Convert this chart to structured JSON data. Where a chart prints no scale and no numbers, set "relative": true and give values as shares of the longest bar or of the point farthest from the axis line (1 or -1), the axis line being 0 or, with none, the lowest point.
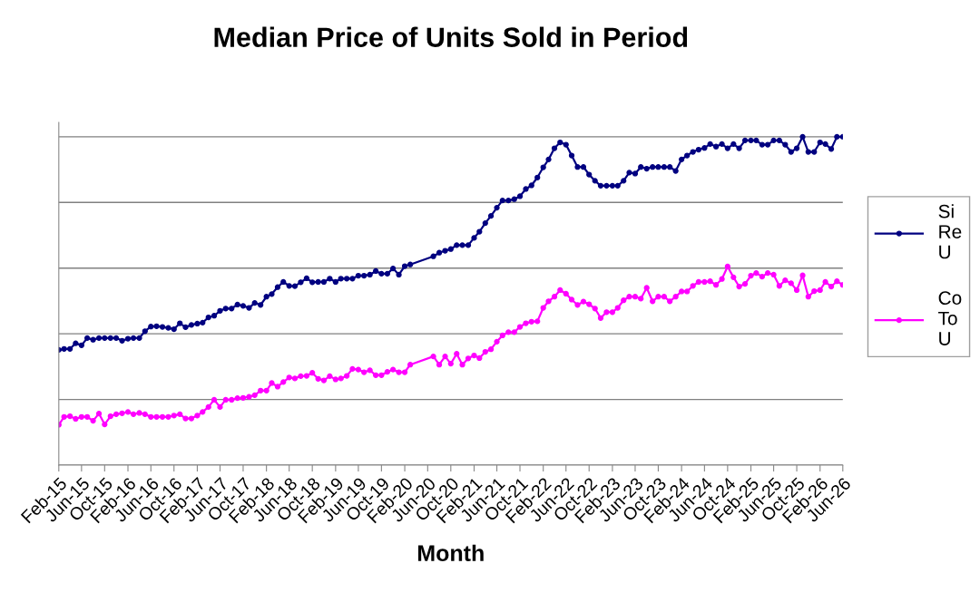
{
  "chart_data": {
    "type": "line",
    "title": "Median Price of Units Sold in Period",
    "xlabel": "Month",
    "relative": true,
    "grid": "y",
    "legend": "right",
    "marker": "circle",
    "line_style": "solid",
    "x": [
      "2015-02",
      "2015-03",
      "2015-04",
      "2015-05",
      "2015-06",
      "2015-07",
      "2015-08",
      "2015-09",
      "2015-10",
      "2015-11",
      "2015-12",
      "2016-01",
      "2016-02",
      "2016-03",
      "2016-04",
      "2016-05",
      "2016-06",
      "2016-07",
      "2016-08",
      "2016-09",
      "2016-10",
      "2016-11",
      "2016-12",
      "2017-01",
      "2017-02",
      "2017-03",
      "2017-04",
      "2017-05",
      "2017-06",
      "2017-07",
      "2017-08",
      "2017-09",
      "2017-10",
      "2017-11",
      "2017-12",
      "2018-01",
      "2018-02",
      "2018-03",
      "2018-04",
      "2018-05",
      "2018-06",
      "2018-07",
      "2018-08",
      "2018-09",
      "2018-10",
      "2018-11",
      "2018-12",
      "2019-01",
      "2019-02",
      "2019-03",
      "2019-04",
      "2019-05",
      "2019-06",
      "2019-07",
      "2019-08",
      "2019-09",
      "2019-10",
      "2019-11",
      "2019-12",
      "2020-01",
      "2020-02",
      "2020-03",
      "2020-07",
      "2020-08",
      "2020-09",
      "2020-10",
      "2020-11",
      "2020-12",
      "2021-01",
      "2021-02",
      "2021-03",
      "2021-04",
      "2021-05",
      "2021-06",
      "2021-07",
      "2021-08",
      "2021-09",
      "2021-10",
      "2021-11",
      "2021-12",
      "2022-01",
      "2022-02",
      "2022-03",
      "2022-04",
      "2022-05",
      "2022-06",
      "2022-07",
      "2022-08",
      "2022-09",
      "2022-10",
      "2022-11",
      "2022-12",
      "2023-01",
      "2023-02",
      "2023-03",
      "2023-04",
      "2023-05",
      "2023-06",
      "2023-07",
      "2023-08",
      "2023-09",
      "2023-10",
      "2023-11",
      "2023-12",
      "2024-01",
      "2024-02",
      "2024-03",
      "2024-04",
      "2024-05",
      "2024-06",
      "2024-07",
      "2024-08",
      "2024-09",
      "2024-10",
      "2024-11",
      "2024-12",
      "2025-01",
      "2025-02",
      "2025-03",
      "2025-04",
      "2025-05",
      "2025-06",
      "2025-07",
      "2025-08",
      "2025-09",
      "2025-10",
      "2025-11",
      "2025-12",
      "2026-01",
      "2026-02",
      "2026-03",
      "2026-04",
      "2026-05",
      "2026-06"
    ],
    "xlim": [
      "2015-02",
      "2026-06"
    ],
    "xticks": [
      {
        "value": "2015-02",
        "label": "Feb-15"
      },
      {
        "value": "2015-06",
        "label": "Jun-15"
      },
      {
        "value": "2015-10",
        "label": "Oct-15"
      },
      {
        "value": "2016-02",
        "label": "Feb-16"
      },
      {
        "value": "2016-06",
        "label": "Jun-16"
      },
      {
        "value": "2016-10",
        "label": "Oct-16"
      },
      {
        "value": "2017-02",
        "label": "Feb-17"
      },
      {
        "value": "2017-06",
        "label": "Jun-17"
      },
      {
        "value": "2017-10",
        "label": "Oct-17"
      },
      {
        "value": "2018-02",
        "label": "Feb-18"
      },
      {
        "value": "2018-06",
        "label": "Jun-18"
      },
      {
        "value": "2018-10",
        "label": "Oct-18"
      },
      {
        "value": "2019-02",
        "label": "Feb-19"
      },
      {
        "value": "2019-06",
        "label": "Jun-19"
      },
      {
        "value": "2019-10",
        "label": "Oct-19"
      },
      {
        "value": "2020-02",
        "label": "Feb-20"
      },
      {
        "value": "2020-06",
        "label": "Jun-20"
      },
      {
        "value": "2020-10",
        "label": "Oct-20"
      },
      {
        "value": "2021-02",
        "label": "Feb-21"
      },
      {
        "value": "2021-06",
        "label": "Jun-21"
      },
      {
        "value": "2021-10",
        "label": "Oct-21"
      },
      {
        "value": "2022-02",
        "label": "Feb-22"
      },
      {
        "value": "2022-06",
        "label": "Jun-22"
      },
      {
        "value": "2022-10",
        "label": "Oct-22"
      },
      {
        "value": "2023-02",
        "label": "Feb-23"
      },
      {
        "value": "2023-06",
        "label": "Jun-23"
      },
      {
        "value": "2023-10",
        "label": "Oct-23"
      },
      {
        "value": "2024-02",
        "label": "Feb-24"
      },
      {
        "value": "2024-06",
        "label": "Jun-24"
      },
      {
        "value": "2024-10",
        "label": "Oct-24"
      },
      {
        "value": "2025-02",
        "label": "Feb-25"
      },
      {
        "value": "2025-06",
        "label": "Jun-25"
      },
      {
        "value": "2025-10",
        "label": "Oct-25"
      },
      {
        "value": "2026-02",
        "label": "Feb-26"
      },
      {
        "value": "2026-06",
        "label": "Jun-26"
      }
    ],
    "series": [
      {
        "name": "Si\nRe\nU",
        "color": "#000080",
        "values": [
          0.351,
          0.354,
          0.354,
          0.371,
          0.365,
          0.387,
          0.382,
          0.387,
          0.387,
          0.387,
          0.387,
          0.379,
          0.385,
          0.387,
          0.387,
          0.408,
          0.422,
          0.423,
          0.421,
          0.418,
          0.414,
          0.432,
          0.42,
          0.427,
          0.431,
          0.434,
          0.45,
          0.455,
          0.47,
          0.477,
          0.477,
          0.489,
          0.485,
          0.479,
          0.494,
          0.488,
          0.513,
          0.521,
          0.542,
          0.558,
          0.546,
          0.545,
          0.557,
          0.569,
          0.557,
          0.558,
          0.558,
          0.568,
          0.558,
          0.568,
          0.568,
          0.568,
          0.577,
          0.577,
          0.58,
          0.591,
          0.583,
          0.583,
          0.599,
          0.58,
          0.606,
          0.611,
          0.636,
          0.647,
          0.653,
          0.658,
          0.67,
          0.67,
          0.67,
          0.692,
          0.711,
          0.737,
          0.759,
          0.784,
          0.806,
          0.806,
          0.81,
          0.819,
          0.841,
          0.852,
          0.876,
          0.907,
          0.931,
          0.965,
          0.983,
          0.976,
          0.943,
          0.908,
          0.908,
          0.885,
          0.866,
          0.851,
          0.851,
          0.851,
          0.851,
          0.866,
          0.891,
          0.888,
          0.908,
          0.903,
          0.908,
          0.908,
          0.908,
          0.908,
          0.896,
          0.931,
          0.943,
          0.954,
          0.961,
          0.966,
          0.978,
          0.97,
          0.978,
          0.965,
          0.978,
          0.965,
          0.989,
          0.989,
          0.989,
          0.976,
          0.976,
          0.989,
          0.989,
          0.976,
          0.954,
          0.965,
          1,
          0.954,
          0.954,
          0.983,
          0.978,
          0.963,
          1,
          1
        ]
      },
      {
        "name": "Co\nTo\nU",
        "color": "#ff00ff",
        "values": [
          0.123,
          0.147,
          0.149,
          0.141,
          0.147,
          0.147,
          0.135,
          0.157,
          0.124,
          0.149,
          0.155,
          0.158,
          0.162,
          0.155,
          0.159,
          0.155,
          0.147,
          0.147,
          0.147,
          0.147,
          0.151,
          0.155,
          0.142,
          0.142,
          0.151,
          0.162,
          0.177,
          0.199,
          0.177,
          0.199,
          0.199,
          0.204,
          0.205,
          0.208,
          0.213,
          0.227,
          0.227,
          0.25,
          0.239,
          0.253,
          0.267,
          0.264,
          0.271,
          0.272,
          0.281,
          0.263,
          0.258,
          0.271,
          0.261,
          0.264,
          0.272,
          0.293,
          0.291,
          0.283,
          0.289,
          0.274,
          0.274,
          0.284,
          0.291,
          0.283,
          0.283,
          0.306,
          0.331,
          0.306,
          0.331,
          0.309,
          0.339,
          0.306,
          0.325,
          0.334,
          0.326,
          0.345,
          0.353,
          0.376,
          0.395,
          0.405,
          0.405,
          0.421,
          0.432,
          0.437,
          0.438,
          0.479,
          0.499,
          0.513,
          0.533,
          0.522,
          0.504,
          0.488,
          0.498,
          0.49,
          0.477,
          0.448,
          0.466,
          0.466,
          0.479,
          0.502,
          0.513,
          0.513,
          0.507,
          0.54,
          0.499,
          0.513,
          0.513,
          0.499,
          0.513,
          0.529,
          0.529,
          0.546,
          0.558,
          0.558,
          0.56,
          0.549,
          0.567,
          0.605,
          0.572,
          0.544,
          0.552,
          0.577,
          0.585,
          0.574,
          0.585,
          0.58,
          0.546,
          0.563,
          0.554,
          0.533,
          0.578,
          0.513,
          0.53,
          0.533,
          0.558,
          0.544,
          0.56,
          0.549
        ]
      }
    ]
  }
}
